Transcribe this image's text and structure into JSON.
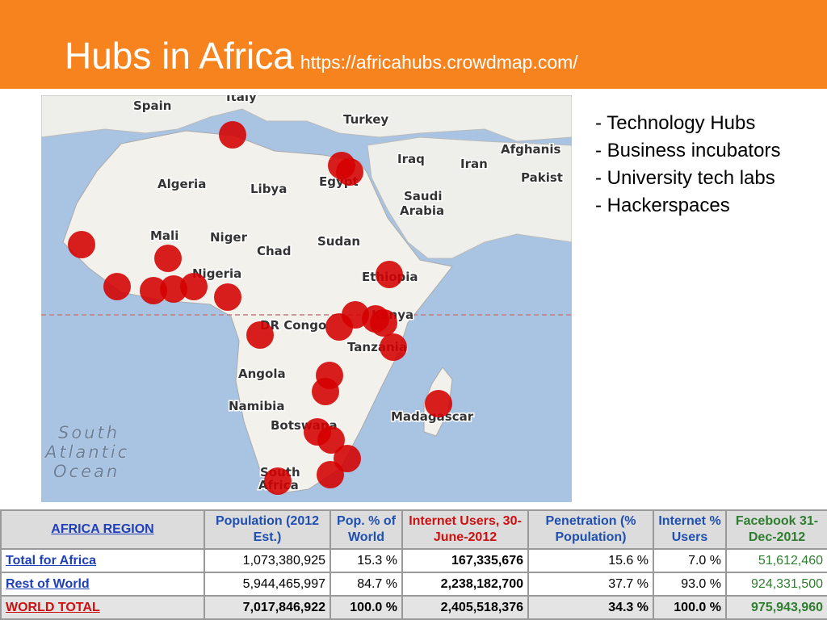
{
  "header": {
    "title": "Hubs in Africa",
    "url": "https://africahubs.crowdmap.com/"
  },
  "bullets": [
    "- Technology Hubs",
    "- Business incubators",
    "- University tech labs",
    "- Hackerspaces"
  ],
  "map": {
    "labels": [
      "Spain",
      "Italy",
      "Turkey",
      "Afghanis",
      "Iraq",
      "Iran",
      "Pakist",
      "Algeria",
      "Libya",
      "Egypt",
      "Saudi",
      "Arabia",
      "Mali",
      "Niger",
      "Chad",
      "Sudan",
      "Nigeria",
      "Ethiopia",
      "Kenya",
      "DR Congo",
      "Tanzania",
      "Angola",
      "Namibia",
      "Botswana",
      "Madagascar",
      "South",
      "Africa"
    ],
    "ocean": [
      "South",
      "Atlantic",
      "Ocean"
    ]
  },
  "table": {
    "header": [
      "AFRICA REGION",
      "Population (2012 Est.)",
      "Pop. % of World",
      "Internet Users, 30-June-2012",
      "Penetration (% Population)",
      "Internet % Users",
      "Facebook 31-Dec-2012"
    ],
    "rows": [
      [
        "Total for Africa",
        "1,073,380,925",
        "15.3 %",
        "167,335,676",
        "15.6 %",
        "7.0 %",
        "51,612,460"
      ],
      [
        "Rest of World",
        "5,944,465,997",
        "84.7 %",
        "2,238,182,700",
        "37.7 %",
        "93.0 %",
        "924,331,500"
      ],
      [
        "WORLD TOTAL",
        "7,017,846,922",
        "100.0 %",
        "2,405,518,376",
        "34.3 %",
        "100.0 %",
        "975,943,960"
      ]
    ]
  }
}
